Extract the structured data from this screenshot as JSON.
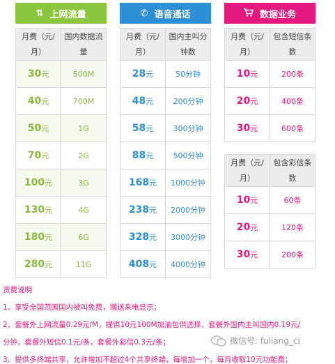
{
  "panels": {
    "data": {
      "title": "上网流量",
      "icon": "up-down-arrows-icon",
      "color": "#8cc63f",
      "col1": "月费（元/月）",
      "col2": "国内数据流量",
      "rows": [
        {
          "fee": "30",
          "value": "500M"
        },
        {
          "fee": "40",
          "value": "700M"
        },
        {
          "fee": "50",
          "value": "1G"
        },
        {
          "fee": "70",
          "value": "2G"
        },
        {
          "fee": "100",
          "value": "3G"
        },
        {
          "fee": "130",
          "value": "4G"
        },
        {
          "fee": "180",
          "value": "6G"
        },
        {
          "fee": "280",
          "value": "11G"
        }
      ]
    },
    "voice": {
      "title": "语音通话",
      "icon": "phone-icon",
      "color": "#2d8fd5",
      "col1": "月费（元/月）",
      "col2": "国内主叫分钟数",
      "rows": [
        {
          "fee": "28",
          "value": "50分钟"
        },
        {
          "fee": "48",
          "value": "200分钟"
        },
        {
          "fee": "58",
          "value": "300分钟"
        },
        {
          "fee": "88",
          "value": "500分钟"
        },
        {
          "fee": "168",
          "value": "1000分钟"
        },
        {
          "fee": "238",
          "value": "2000分钟"
        },
        {
          "fee": "328",
          "value": "3000分钟"
        },
        {
          "fee": "408",
          "value": "4000分钟"
        }
      ]
    },
    "sms": {
      "title": "数据业务",
      "icon": "shopping-cart-icon",
      "color": "#e3197f",
      "col1": "月费（元/月）",
      "col2": "包含短信条数",
      "rows": [
        {
          "fee": "10",
          "value": "200条"
        },
        {
          "fee": "20",
          "value": "400条"
        },
        {
          "fee": "30",
          "value": "600条"
        }
      ]
    },
    "mms": {
      "col1": "月费（元/月）",
      "col2": "包含彩信条数",
      "rows": [
        {
          "fee": "10",
          "value": "60条"
        },
        {
          "fee": "20",
          "value": "120条"
        },
        {
          "fee": "30",
          "value": "200条"
        }
      ]
    }
  },
  "unit": "元",
  "notes": {
    "title": "资费说明",
    "line1": "1、享受全国范围国内被叫免费，赠送来电显示；",
    "line2": "2、套餐外上网流量0.29元/M，提供10元100M加油包供选择，套餐外国内主叫国内0.19元/",
    "line3": "分钟，套餐外短信0.1元/条，套餐外彩信0.3元/条；",
    "line4": "3、提供多终端共享，允许增加不超过4个共享终端，每增加一个，每月收取10元功能费；"
  },
  "watermark": "微信号: fuliang_ci"
}
